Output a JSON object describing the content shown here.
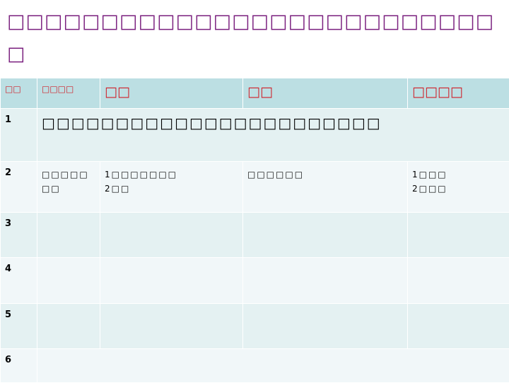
{
  "title": [
    "□□□□□□□□□□□□□□□□□□□□□□□□□□□",
    "□□□,□□□□□□□□□□□"
  ],
  "table": {
    "header": [
      "□□",
      "□□□□",
      "□□",
      "□□",
      "□□□□"
    ],
    "rows": [
      {
        "number": "1",
        "merged": "□□□□□□□□□□□□□□□□□□□□□□□"
      },
      {
        "number": "2",
        "cells": [
          [
            "□□□□□",
            "□□"
          ],
          [
            "1□□□□□□□",
            "2□□"
          ],
          [
            "□□□□□□"
          ],
          [
            "1□□□",
            "2□□□"
          ]
        ]
      },
      {
        "number": "3"
      },
      {
        "number": "4"
      },
      {
        "number": "5"
      },
      {
        "number": "6"
      }
    ]
  }
}
